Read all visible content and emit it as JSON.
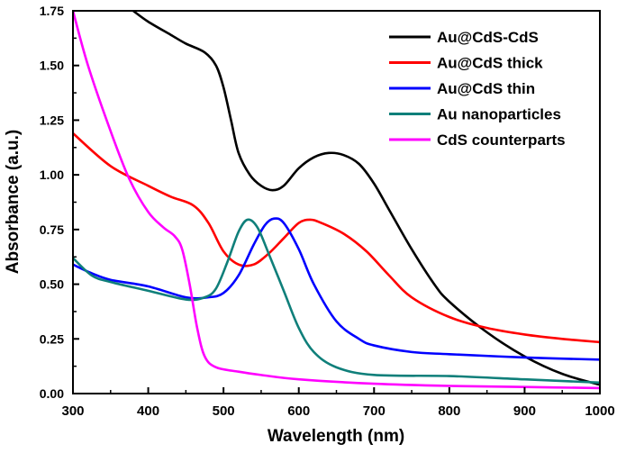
{
  "chart_data": {
    "type": "line",
    "title": "",
    "xlabel": "Wavelength (nm)",
    "ylabel": "Absorbance (a.u.)",
    "xlim": [
      300,
      1000
    ],
    "ylim": [
      0,
      1.75
    ],
    "xticks": [
      "300",
      "400",
      "500",
      "600",
      "700",
      "800",
      "900",
      "1000"
    ],
    "yticks": [
      "0.00",
      "0.25",
      "0.50",
      "0.75",
      "1.00",
      "1.25",
      "1.50",
      "1.75"
    ],
    "grid": false,
    "legend_position": "top-right",
    "series": [
      {
        "name": "Au@CdS-CdS",
        "color": "#000000",
        "x": [
          380,
          400,
          430,
          450,
          475,
          490,
          500,
          510,
          520,
          535,
          550,
          565,
          580,
          600,
          620,
          640,
          660,
          680,
          700,
          720,
          750,
          780,
          800,
          850,
          900,
          950,
          1000
        ],
        "y": [
          1.75,
          1.7,
          1.64,
          1.6,
          1.56,
          1.5,
          1.4,
          1.25,
          1.1,
          1.0,
          0.95,
          0.93,
          0.95,
          1.03,
          1.08,
          1.1,
          1.09,
          1.05,
          0.96,
          0.84,
          0.66,
          0.5,
          0.42,
          0.28,
          0.17,
          0.09,
          0.04
        ]
      },
      {
        "name": "Au@CdS thick",
        "color": "#ff0000",
        "x": [
          300,
          350,
          400,
          430,
          460,
          480,
          500,
          520,
          540,
          560,
          580,
          600,
          615,
          630,
          660,
          690,
          720,
          750,
          800,
          850,
          900,
          950,
          1000
        ],
        "y": [
          1.19,
          1.04,
          0.95,
          0.9,
          0.86,
          0.78,
          0.65,
          0.59,
          0.59,
          0.64,
          0.71,
          0.78,
          0.795,
          0.78,
          0.73,
          0.65,
          0.54,
          0.44,
          0.35,
          0.3,
          0.27,
          0.25,
          0.235
        ]
      },
      {
        "name": "Au@CdS thin",
        "color": "#0000ff",
        "x": [
          300,
          325,
          350,
          400,
          450,
          480,
          500,
          520,
          540,
          555,
          567,
          580,
          600,
          620,
          650,
          680,
          700,
          750,
          800,
          900,
          1000
        ],
        "y": [
          0.59,
          0.55,
          0.52,
          0.49,
          0.44,
          0.44,
          0.46,
          0.54,
          0.68,
          0.77,
          0.8,
          0.78,
          0.66,
          0.5,
          0.33,
          0.25,
          0.22,
          0.19,
          0.18,
          0.165,
          0.155
        ]
      },
      {
        "name": "Au nanoparticles",
        "color": "#0f7f7a",
        "x": [
          300,
          325,
          350,
          400,
          450,
          475,
          490,
          505,
          520,
          532,
          545,
          560,
          580,
          600,
          620,
          650,
          700,
          800,
          900,
          1000
        ],
        "y": [
          0.62,
          0.54,
          0.51,
          0.47,
          0.43,
          0.44,
          0.48,
          0.6,
          0.74,
          0.795,
          0.76,
          0.64,
          0.47,
          0.3,
          0.19,
          0.12,
          0.085,
          0.08,
          0.065,
          0.05
        ]
      },
      {
        "name": "CdS counterparts",
        "color": "#ff00ff",
        "x": [
          300,
          320,
          350,
          375,
          400,
          420,
          435,
          445,
          455,
          465,
          475,
          490,
          520,
          550,
          600,
          700,
          800,
          900,
          1000
        ],
        "y": [
          1.75,
          1.5,
          1.2,
          0.98,
          0.83,
          0.76,
          0.72,
          0.66,
          0.5,
          0.3,
          0.17,
          0.12,
          0.1,
          0.085,
          0.065,
          0.045,
          0.035,
          0.03,
          0.025
        ]
      }
    ]
  }
}
